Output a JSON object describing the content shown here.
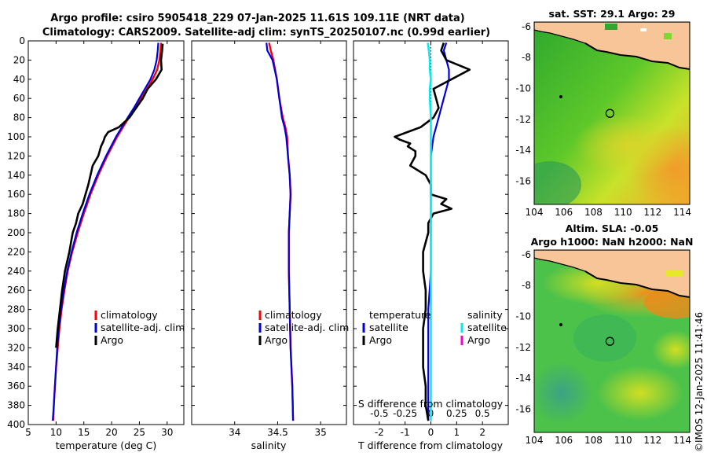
{
  "titles": {
    "line1": "Argo profile: csiro 5905418_229 07-Jan-2025 11.61S 109.11E (NRT data)",
    "line2": "Climatology: CARS2009. Satellite-adj clim: synTS_20250107.nc (0.99d earlier)"
  },
  "colors": {
    "climatology": "#ff0000",
    "satellite": "#0000dd",
    "argo": "#000000",
    "sal_satellite": "#00eeee",
    "sal_argo": "#ff00cc",
    "land": "#f7c597"
  },
  "chart_data": [
    {
      "type": "line",
      "name": "temperature-profile",
      "xlabel": "temperature (deg C)",
      "ylabel": "depth",
      "xlim": [
        5,
        33
      ],
      "ylim": [
        400,
        0
      ],
      "xticks": [
        5,
        10,
        15,
        20,
        25,
        30
      ],
      "yticks": [
        0,
        20,
        40,
        60,
        80,
        100,
        120,
        140,
        160,
        180,
        200,
        220,
        240,
        260,
        280,
        300,
        320,
        340,
        360,
        380,
        400
      ],
      "legend": [
        "climatology",
        "satellite-adj. clim",
        "Argo"
      ],
      "series": [
        {
          "name": "climatology",
          "depth": [
            2,
            10,
            20,
            30,
            40,
            50,
            60,
            70,
            80,
            100,
            120,
            140,
            160,
            180,
            200,
            220,
            240,
            260,
            280,
            300,
            320,
            340,
            360,
            380,
            396
          ],
          "values": [
            28.9,
            28.8,
            28.6,
            28.2,
            27.4,
            26.4,
            25.3,
            24.2,
            23.1,
            21.0,
            19.2,
            17.6,
            16.2,
            15.0,
            13.9,
            12.9,
            12.1,
            11.5,
            11.0,
            10.6,
            10.3,
            10.0,
            9.8,
            9.6,
            9.5
          ]
        },
        {
          "name": "satellite-adj. clim",
          "depth": [
            2,
            10,
            20,
            30,
            40,
            50,
            60,
            70,
            80,
            100,
            120,
            140,
            160,
            180,
            200,
            220,
            240,
            260,
            280,
            300,
            320,
            340,
            360,
            380,
            396
          ],
          "values": [
            28.4,
            28.3,
            28.1,
            27.7,
            27.0,
            26.0,
            25.0,
            24.0,
            22.9,
            20.8,
            19.0,
            17.4,
            16.0,
            14.8,
            13.7,
            12.8,
            12.0,
            11.4,
            10.9,
            10.5,
            10.2,
            10.0,
            9.8,
            9.6,
            9.4
          ]
        },
        {
          "name": "Argo",
          "depth": [
            3,
            10,
            20,
            30,
            40,
            50,
            60,
            70,
            80,
            90,
            95,
            100,
            105,
            110,
            120,
            130,
            140,
            150,
            160,
            170,
            180,
            190,
            200,
            210,
            220,
            240,
            260,
            280,
            300,
            320
          ],
          "values": [
            29.2,
            29.1,
            28.9,
            29.0,
            28.0,
            26.5,
            25.6,
            24.4,
            23.2,
            21.3,
            19.4,
            18.8,
            18.5,
            18.1,
            17.6,
            16.6,
            16.2,
            15.8,
            15.3,
            14.8,
            14.0,
            13.6,
            13.0,
            12.7,
            12.4,
            11.6,
            11.1,
            10.7,
            10.3,
            10.0
          ]
        }
      ]
    },
    {
      "type": "line",
      "name": "salinity-profile",
      "xlabel": "salinity",
      "ylabel": "depth",
      "xlim": [
        33.5,
        35.3
      ],
      "ylim": [
        400,
        0
      ],
      "xticks": [
        34,
        34.5,
        35
      ],
      "legend": [
        "climatology",
        "satellite-adj. clim",
        "Argo"
      ],
      "series": [
        {
          "name": "climatology",
          "depth": [
            2,
            10,
            20,
            40,
            60,
            80,
            90,
            100,
            120,
            140,
            160,
            180,
            200,
            240,
            280,
            320,
            360,
            396
          ],
          "values": [
            34.4,
            34.42,
            34.45,
            34.49,
            34.52,
            34.56,
            34.59,
            34.61,
            34.62,
            34.64,
            34.65,
            34.64,
            34.63,
            34.63,
            34.64,
            34.65,
            34.67,
            34.68
          ]
        },
        {
          "name": "satellite-adj. clim",
          "depth": [
            2,
            10,
            20,
            40,
            60,
            80,
            90,
            100,
            120,
            140,
            160,
            180,
            200,
            240,
            280,
            320,
            360,
            396
          ],
          "values": [
            34.37,
            34.38,
            34.44,
            34.49,
            34.52,
            34.55,
            34.58,
            34.6,
            34.62,
            34.64,
            34.65,
            34.64,
            34.63,
            34.63,
            34.64,
            34.65,
            34.67,
            34.68
          ]
        }
      ]
    },
    {
      "type": "line",
      "name": "difference-profile",
      "xlabel": "T difference from climatology",
      "ylabel": "depth",
      "xlabel_top": "S difference from climatology",
      "xlim": [
        -3,
        3
      ],
      "ylim": [
        400,
        0
      ],
      "xticks": [
        -2,
        -1,
        0,
        1,
        2
      ],
      "xticks_sal": [
        -0.5,
        -0.25,
        0,
        0.25,
        0.5
      ],
      "legend_temperature_title": "temperature",
      "legend_salinity_title": "salinity",
      "legend_temperature": [
        "satellite",
        "Argo"
      ],
      "legend_salinity": [
        "satellite",
        "Argo"
      ],
      "series": [
        {
          "name": "T satellite",
          "depth": [
            2,
            10,
            20,
            30,
            40,
            50,
            60,
            80,
            100,
            120,
            140,
            160,
            180,
            200,
            240,
            280,
            320,
            360,
            396
          ],
          "values": [
            0.6,
            0.5,
            0.6,
            0.7,
            0.7,
            0.6,
            0.5,
            0.3,
            0.1,
            0.0,
            0.0,
            0.0,
            0.0,
            0.0,
            0.0,
            -0.1,
            -0.1,
            -0.1,
            -0.1
          ]
        },
        {
          "name": "T Argo",
          "depth": [
            2,
            10,
            20,
            30,
            40,
            50,
            60,
            70,
            80,
            90,
            95,
            100,
            103,
            107,
            110,
            115,
            120,
            130,
            140,
            150,
            160,
            165,
            170,
            175,
            180,
            190,
            200,
            220,
            240,
            260,
            280,
            300,
            320,
            340,
            360,
            380,
            396
          ],
          "values": [
            0.5,
            0.4,
            0.6,
            1.5,
            0.8,
            0.1,
            0.2,
            0.3,
            0.1,
            -0.4,
            -0.9,
            -1.4,
            -1.2,
            -0.8,
            -0.9,
            -0.6,
            -0.6,
            -0.8,
            -0.2,
            0.0,
            0.0,
            0.6,
            0.4,
            0.8,
            0.1,
            -0.1,
            -0.1,
            -0.3,
            -0.3,
            -0.2,
            -0.2,
            -0.3,
            -0.3,
            -0.3,
            -0.2,
            -0.2,
            -0.1
          ]
        },
        {
          "name": "S satellite",
          "depth": [
            2,
            10,
            20,
            30,
            40,
            50,
            60,
            80,
            100,
            120,
            140,
            160,
            180,
            200,
            240,
            280,
            320,
            360,
            396
          ],
          "values": [
            -0.03,
            -0.02,
            -0.01,
            -0.01,
            0.0,
            -0.01,
            -0.01,
            0.0,
            0.0,
            0.0,
            0.0,
            0.0,
            0.0,
            0.0,
            0.0,
            0.0,
            0.0,
            0.0,
            0.0
          ]
        }
      ]
    },
    {
      "type": "heatmap",
      "name": "sst-map",
      "title": "sat. SST: 29.1 Argo: 29",
      "xlim": [
        104,
        114.5
      ],
      "ylim": [
        -17.5,
        -5.7
      ],
      "xticks": [
        104,
        106,
        108,
        110,
        112,
        114
      ],
      "yticks": [
        -6,
        -8,
        -10,
        -12,
        -14,
        -16
      ],
      "argo_position": {
        "lon": 109.11,
        "lat": -11.61
      }
    },
    {
      "type": "heatmap",
      "name": "sla-map",
      "title_line1": "Altim. SLA: -0.05",
      "title_line2": "Argo h1000: NaN h2000: NaN",
      "xlim": [
        104,
        114.5
      ],
      "ylim": [
        -17.5,
        -5.7
      ],
      "xticks": [
        104,
        106,
        108,
        110,
        112,
        114
      ],
      "yticks": [
        -6,
        -8,
        -10,
        -12,
        -14,
        -16
      ],
      "argo_position": {
        "lon": 109.11,
        "lat": -11.61
      }
    }
  ],
  "footer": {
    "credit": "©IMOS 12-Jan-2025 11:41:46"
  }
}
